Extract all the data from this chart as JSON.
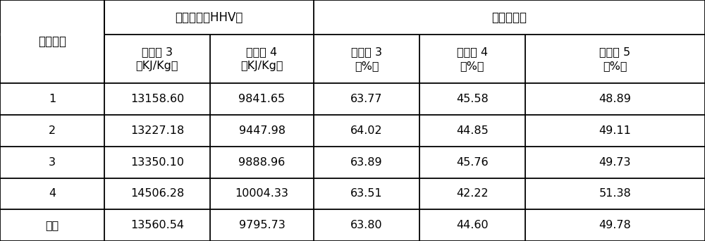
{
  "group1_label": "污泥热值（HHV）",
  "group2_label": "污泥脱水率",
  "col0_label": "实验次数",
  "header2": [
    "实施例 3\n（KJ/Kg）",
    "实施例 4\n（KJ/Kg）",
    "实施例 3\n（%）",
    "实施例 4\n（%）",
    "实施例 5\n（%）"
  ],
  "rows": [
    [
      "1",
      "13158.60",
      "9841.65",
      "63.77",
      "45.58",
      "48.89"
    ],
    [
      "2",
      "13227.18",
      "9447.98",
      "64.02",
      "44.85",
      "49.11"
    ],
    [
      "3",
      "13350.10",
      "9888.96",
      "63.89",
      "45.76",
      "49.73"
    ],
    [
      "4",
      "14506.28",
      "10004.33",
      "63.51",
      "42.22",
      "51.38"
    ],
    [
      "平均",
      "13560.54",
      "9795.73",
      "63.80",
      "44.60",
      "49.78"
    ]
  ],
  "bg_color": "#ffffff",
  "line_color": "#000000",
  "text_color": "#000000",
  "font_size": 11.5,
  "header_font_size": 12
}
